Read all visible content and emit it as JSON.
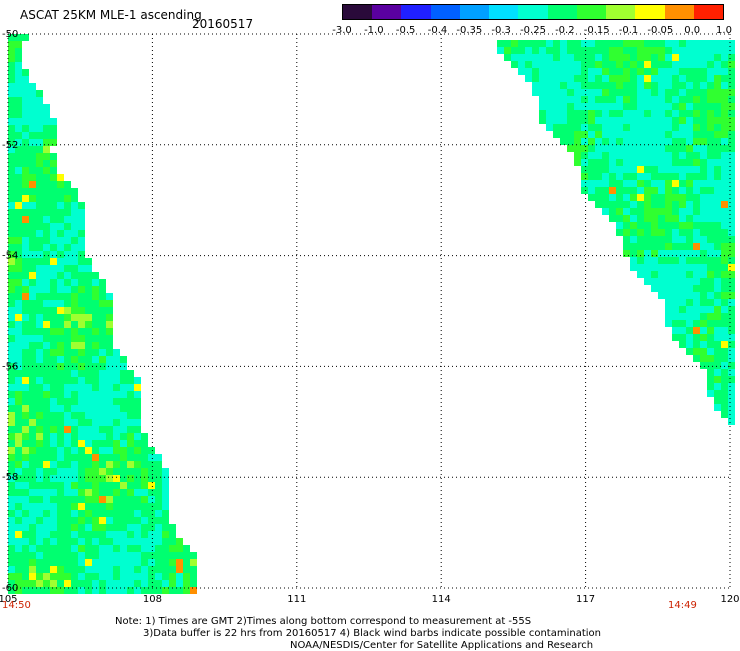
{
  "header": {
    "title": "ASCAT 25KM MLE-1 ascending",
    "date": "20160517"
  },
  "colorbar": {
    "labels": [
      "-3.0",
      "-1.0",
      "-0.5",
      "-0.4",
      "-0.35",
      "-0.3",
      "-0.25",
      "-0.2",
      "-0.15",
      "-0.1",
      "-0.05",
      "0.0",
      "1.0"
    ],
    "colors": [
      "#2a0a3a",
      "#5a00a0",
      "#2020ff",
      "#0060ff",
      "#00a0ff",
      "#00e0ff",
      "#00ffd0",
      "#00ff70",
      "#30ff30",
      "#a0ff30",
      "#ffff00",
      "#ff9000",
      "#ff2000"
    ]
  },
  "map": {
    "lon_range": [
      105,
      120
    ],
    "lat_range": [
      -60,
      -50
    ],
    "lon_ticks": [
      "105",
      "108",
      "111",
      "114",
      "117",
      "120"
    ],
    "lat_ticks": [
      "-50",
      "-52",
      "-54",
      "-56",
      "-58",
      "-60"
    ],
    "grid": true,
    "left_swath_time": "14:50",
    "right_swath_time": "14:49"
  },
  "notes": {
    "line1": "Note: 1) Times are GMT 2)Times along bottom correspond to measurement at -55S",
    "line2": "3)Data buffer is 22 hrs from 20160517 4) Black wind barbs indicate possible contamination",
    "line3": "NOAA/NESDIS/Center for Satellite Applications and Research"
  }
}
